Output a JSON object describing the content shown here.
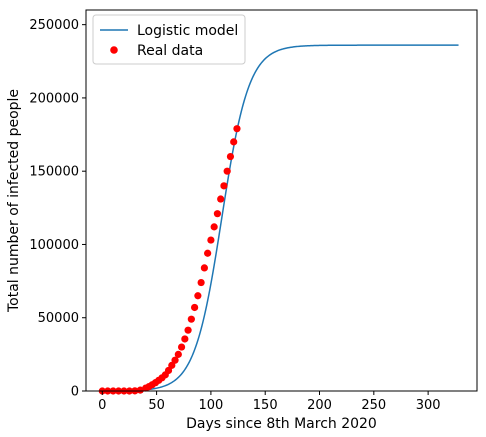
{
  "chart_data": {
    "type": "line",
    "xlabel": "Days since 8th March 2020",
    "ylabel": "Total number of infected people",
    "xlim": [
      -15,
      345
    ],
    "ylim": [
      0,
      260000
    ],
    "x_ticks": [
      0,
      50,
      100,
      150,
      200,
      250,
      300
    ],
    "y_ticks": [
      0,
      50000,
      100000,
      150000,
      200000,
      250000
    ],
    "grid": false,
    "legend_position": "top-left",
    "logistic_model": {
      "name": "Logistic model",
      "color": "#1f77b4",
      "x_range": [
        0,
        328
      ],
      "params": {
        "a": 12.5,
        "b": 110,
        "c": 236000
      }
    },
    "series": [
      {
        "name": "Logistic model",
        "type": "line",
        "color": "#1f77b4",
        "x": [
          0,
          20,
          40,
          50,
          60,
          70,
          80,
          90,
          100,
          110,
          120,
          125,
          130,
          140,
          150,
          160,
          170,
          180,
          190,
          200,
          220,
          250,
          300,
          328
        ],
        "y": [
          190,
          930,
          4300,
          8800,
          17400,
          32200,
          53500,
          80400,
          108900,
          132000,
          154200,
          171000,
          186000,
          206000,
          219000,
          227000,
          231000,
          233500,
          234800,
          235400,
          235850,
          235980,
          236000,
          236000
        ]
      },
      {
        "name": "Real data",
        "type": "scatter",
        "color": "#ff0000",
        "x": [
          0,
          5,
          10,
          15,
          20,
          25,
          30,
          35,
          40,
          43,
          46,
          49,
          52,
          55,
          58,
          61,
          64,
          67,
          70,
          73,
          76,
          79,
          82,
          85,
          88,
          91,
          94,
          97,
          100,
          103,
          106,
          109,
          112,
          115,
          118,
          121,
          124
        ],
        "y": [
          0,
          0,
          0,
          0,
          0,
          0,
          100,
          600,
          2000,
          3000,
          4300,
          5700,
          7300,
          9000,
          11000,
          14000,
          17500,
          21000,
          25000,
          30000,
          35500,
          41500,
          49000,
          57000,
          65000,
          74000,
          84000,
          94000,
          103000,
          112000,
          121000,
          131000,
          140000,
          150000,
          160000,
          170000,
          179000
        ]
      }
    ]
  }
}
